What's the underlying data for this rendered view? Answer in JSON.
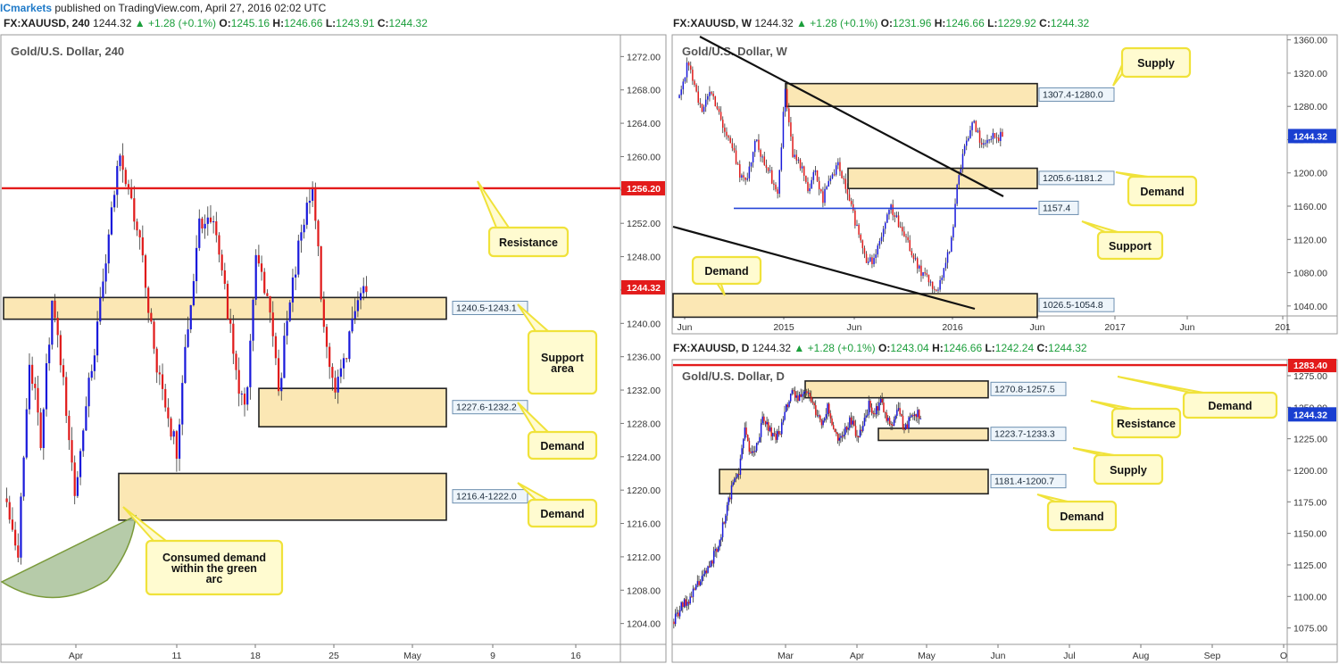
{
  "header": {
    "brand": "ICmarkets",
    "text": "published on TradingView.com, April 27, 2016 02:02 UTC"
  },
  "colors": {
    "bull": "#1a1adb",
    "bear": "#e01b1b",
    "zone_fill": "#fbe7b4",
    "resistance": "#e31b1b",
    "callout_fill": "#fffbd0",
    "callout_border": "#f0e23a",
    "support_blue": "#2646d8",
    "arc_fill": "#a9c29a"
  },
  "panels": [
    {
      "title": {
        "symbol": "FX:XAUUSD, 240",
        "price": "1244.32",
        "change": "+1.28 (+0.1%)",
        "o": "1245.16",
        "h": "1246.66",
        "l": "1243.91",
        "c": "1244.32"
      },
      "chart_data": {
        "type": "candlestick",
        "title": "Gold/U.S. Dollar, 240",
        "ylim": [
          1201.5,
          1274.5
        ],
        "y_ticks": [
          "1272.00",
          "1268.00",
          "1264.00",
          "1260.00",
          "1256.00",
          "1252.00",
          "1248.00",
          "1244.00",
          "1240.00",
          "1236.00",
          "1232.00",
          "1228.00",
          "1224.00",
          "1220.00",
          "1216.00",
          "1212.00",
          "1208.00",
          "1204.00"
        ],
        "x_ticks": [
          "Apr",
          "11",
          "18",
          "25",
          "May",
          "9",
          "16"
        ],
        "last_price": "1244.32",
        "levels": [
          {
            "name": "Resistance",
            "value": 1256.2,
            "label": "1256.20"
          }
        ],
        "zones": [
          {
            "label": "1240.5-1243.1",
            "low": 1240.5,
            "high": 1243.1
          },
          {
            "label": "1227.6-1232.2",
            "low": 1227.6,
            "high": 1232.2
          },
          {
            "label": "1216.4-1222.0",
            "low": 1216.4,
            "high": 1222.0
          }
        ],
        "annotations": [
          "Resistance",
          "Support\narea",
          "Demand",
          "Demand",
          "Consumed demand\nwithin the green\narc"
        ],
        "series_seed": [
          1219,
          1213,
          1236,
          1226,
          1242,
          1233,
          1219,
          1231,
          1239,
          1250,
          1261,
          1254,
          1248,
          1236,
          1230,
          1225,
          1240,
          1252,
          1253,
          1247,
          1236,
          1229,
          1247,
          1244,
          1232,
          1243,
          1251,
          1256,
          1240,
          1232,
          1236,
          1244
        ]
      }
    },
    {
      "title": {
        "symbol": "FX:XAUUSD, W",
        "price": "1244.32",
        "change": "+1.28 (+0.1%)",
        "o": "1231.96",
        "h": "1246.66",
        "l": "1229.92",
        "c": "1244.32"
      },
      "chart_data": {
        "type": "candlestick",
        "title": "Gold/U.S. Dollar, W",
        "ylim": [
          1028,
          1365
        ],
        "y_ticks": [
          "1360.00",
          "1320.00",
          "1280.00",
          "1240.00",
          "1200.00",
          "1160.00",
          "1120.00",
          "1080.00",
          "1040.00"
        ],
        "x_ticks": [
          "Jun",
          "2015",
          "Jun",
          "2016",
          "Jun",
          "2017",
          "Jun",
          "201"
        ],
        "last_price": "1244.32",
        "zones": [
          {
            "label": "1307.4-1280.0",
            "low": 1280.0,
            "high": 1307.4
          },
          {
            "label": "1205.6-1181.2",
            "low": 1181.2,
            "high": 1205.6
          },
          {
            "label": "1026.5-1054.8",
            "low": 1026.5,
            "high": 1054.8
          }
        ],
        "levels": [
          {
            "name": "Support",
            "value": 1157.4,
            "label": "1157.4"
          }
        ],
        "annotations": [
          "Supply",
          "Demand",
          "Support",
          "Demand"
        ],
        "series_seed": [
          1290,
          1330,
          1310,
          1270,
          1300,
          1280,
          1250,
          1230,
          1200,
          1190,
          1240,
          1220,
          1200,
          1170,
          1300,
          1220,
          1210,
          1180,
          1200,
          1170,
          1190,
          1210,
          1180,
          1150,
          1120,
          1090,
          1100,
          1130,
          1160,
          1140,
          1120,
          1100,
          1080,
          1070,
          1060,
          1080,
          1120,
          1200,
          1240,
          1260,
          1230,
          1240,
          1244
        ]
      }
    },
    {
      "title": {
        "symbol": "FX:XAUUSD, D",
        "price": "1244.32",
        "change": "+1.28 (+0.1%)",
        "o": "1243.04",
        "h": "1246.66",
        "l": "1242.24",
        "c": "1244.32"
      },
      "chart_data": {
        "type": "candlestick",
        "title": "Gold/U.S. Dollar, D",
        "ylim": [
          1062,
          1287
        ],
        "y_ticks": [
          "1275.00",
          "1250.00",
          "1225.00",
          "1200.00",
          "1175.00",
          "1150.00",
          "1125.00",
          "1100.00",
          "1075.00"
        ],
        "x_ticks": [
          "Mar",
          "Apr",
          "May",
          "Jun",
          "Jul",
          "Aug",
          "Sep",
          "O"
        ],
        "last_price": "1244.32",
        "levels": [
          {
            "name": "Resistance",
            "value": 1283.4,
            "label": "1283.40"
          }
        ],
        "zones": [
          {
            "label": "1270.8-1257.5",
            "low": 1257.5,
            "high": 1270.8
          },
          {
            "label": "1223.7-1233.3",
            "low": 1223.7,
            "high": 1233.3
          },
          {
            "label": "1181.4-1200.7",
            "low": 1181.4,
            "high": 1200.7
          }
        ],
        "annotations": [
          "Resistance",
          "Supply",
          "Demand",
          "Demand"
        ],
        "series_seed": [
          1080,
          1090,
          1095,
          1100,
          1110,
          1115,
          1125,
          1135,
          1150,
          1170,
          1190,
          1200,
          1230,
          1210,
          1220,
          1240,
          1235,
          1225,
          1230,
          1250,
          1260,
          1255,
          1265,
          1258,
          1245,
          1238,
          1250,
          1230,
          1222,
          1232,
          1240,
          1228,
          1236,
          1252,
          1245,
          1255,
          1240,
          1238,
          1248,
          1232,
          1242,
          1244
        ]
      }
    }
  ]
}
